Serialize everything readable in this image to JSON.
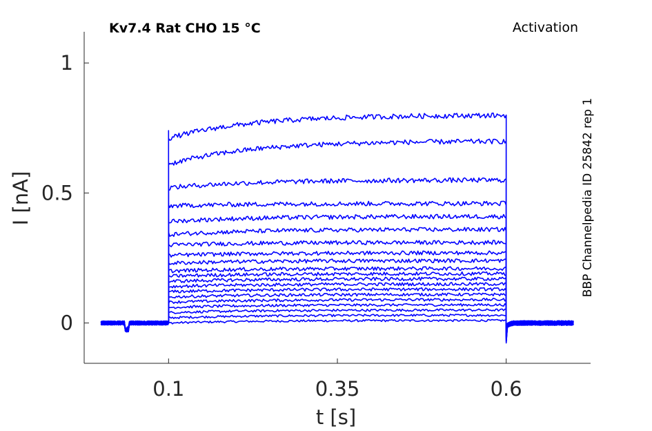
{
  "chart_data": {
    "type": "line",
    "title": "Kv7.4  Rat  CHO  15 °C",
    "title_right": "Activation",
    "side_label": "BBP Channelpedia ID 25842 rep 1",
    "xlabel": "t [s]",
    "ylabel": "I [nA]",
    "xlim": [
      -0.025,
      0.725
    ],
    "ylim": [
      -0.155,
      1.12
    ],
    "xticks": [
      0.1,
      0.35,
      0.6
    ],
    "xtick_labels": [
      "0.1",
      "0.35",
      "0.6"
    ],
    "yticks": [
      0,
      0.5,
      1
    ],
    "ytick_labels": [
      "0",
      "0.5",
      "1"
    ],
    "grid": false,
    "line_color": "#0000ff",
    "baseline_interval": [
      0.0,
      0.1
    ],
    "step_interval": [
      0.1,
      0.6
    ],
    "tail_interval": [
      0.6,
      0.7
    ],
    "series": [
      {
        "start": 0.0,
        "end": 0.01
      },
      {
        "start": 0.02,
        "end": 0.03
      },
      {
        "start": 0.04,
        "end": 0.05
      },
      {
        "start": 0.06,
        "end": 0.07
      },
      {
        "start": 0.08,
        "end": 0.09
      },
      {
        "start": 0.1,
        "end": 0.11
      },
      {
        "start": 0.12,
        "end": 0.13
      },
      {
        "start": 0.14,
        "end": 0.15
      },
      {
        "start": 0.16,
        "end": 0.17
      },
      {
        "start": 0.18,
        "end": 0.19
      },
      {
        "start": 0.2,
        "end": 0.21
      },
      {
        "start": 0.23,
        "end": 0.24
      },
      {
        "start": 0.26,
        "end": 0.27
      },
      {
        "start": 0.3,
        "end": 0.31
      },
      {
        "start": 0.34,
        "end": 0.36
      },
      {
        "start": 0.39,
        "end": 0.41
      },
      {
        "start": 0.45,
        "end": 0.46
      },
      {
        "start": 0.52,
        "end": 0.55
      },
      {
        "start": 0.61,
        "end": 0.7
      },
      {
        "start": 0.71,
        "end": 0.8
      }
    ]
  }
}
